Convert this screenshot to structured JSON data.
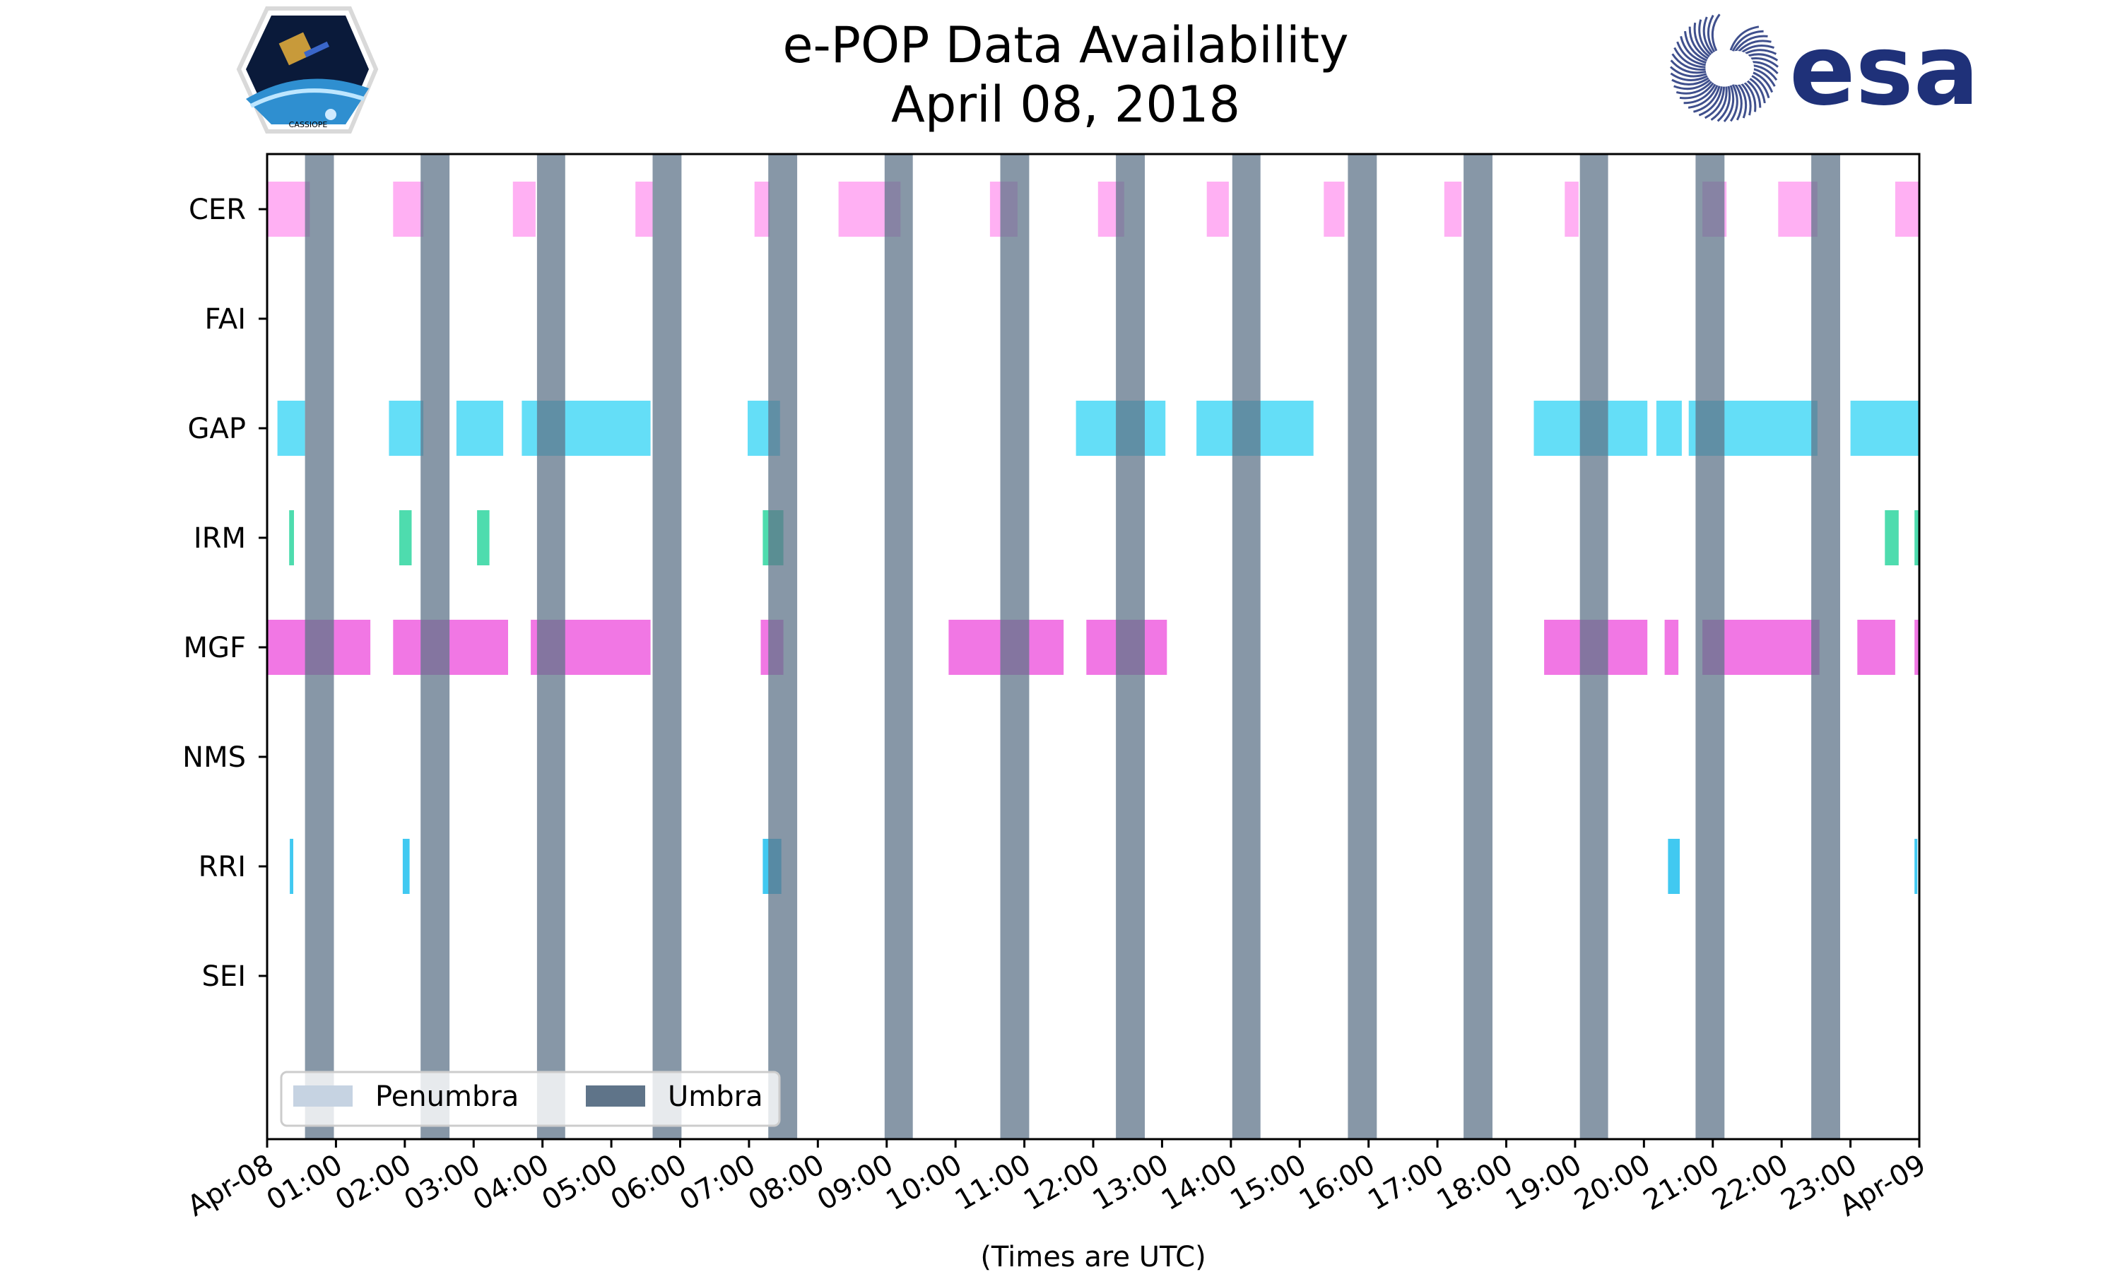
{
  "chart_data": {
    "type": "timeline",
    "title": "e-POP Data Availability",
    "subtitle": "April 08, 2018",
    "xlabel": "(Times are UTC)",
    "x_range_hours": [
      0,
      24
    ],
    "x_tick_labels": [
      "Apr-08",
      "01:00",
      "02:00",
      "03:00",
      "04:00",
      "05:00",
      "06:00",
      "07:00",
      "08:00",
      "09:00",
      "10:00",
      "11:00",
      "12:00",
      "13:00",
      "14:00",
      "15:00",
      "16:00",
      "17:00",
      "18:00",
      "19:00",
      "20:00",
      "21:00",
      "22:00",
      "23:00",
      "Apr-09"
    ],
    "instruments": [
      "CER",
      "FAI",
      "GAP",
      "IRM",
      "MGF",
      "NMS",
      "RRI",
      "SEI"
    ],
    "series": [
      {
        "name": "CER",
        "color": "#ff9cf0",
        "intervals": [
          [
            0.0,
            0.62
          ],
          [
            1.83,
            2.27
          ],
          [
            3.57,
            3.9
          ],
          [
            5.35,
            5.6
          ],
          [
            7.08,
            7.3
          ],
          [
            8.3,
            9.2
          ],
          [
            10.5,
            10.9
          ],
          [
            12.07,
            12.45
          ],
          [
            13.65,
            13.97
          ],
          [
            15.35,
            15.65
          ],
          [
            17.1,
            17.35
          ],
          [
            18.85,
            19.05
          ],
          [
            20.85,
            21.2
          ],
          [
            21.95,
            22.52
          ],
          [
            23.65,
            24.0
          ]
        ]
      },
      {
        "name": "FAI",
        "color": "#00bfff",
        "intervals": []
      },
      {
        "name": "GAP",
        "color": "#3dd6f5",
        "intervals": [
          [
            0.15,
            0.55
          ],
          [
            1.77,
            2.27
          ],
          [
            2.75,
            3.43
          ],
          [
            3.7,
            5.57
          ],
          [
            6.98,
            7.45
          ],
          [
            11.75,
            13.05
          ],
          [
            13.5,
            15.2
          ],
          [
            18.4,
            20.05
          ],
          [
            20.18,
            20.55
          ],
          [
            20.65,
            22.52
          ],
          [
            23.0,
            24.0
          ]
        ]
      },
      {
        "name": "IRM",
        "color": "#22d39a",
        "intervals": [
          [
            0.32,
            0.39
          ],
          [
            1.92,
            2.1
          ],
          [
            3.05,
            3.23
          ],
          [
            7.2,
            7.5
          ],
          [
            23.5,
            23.7
          ],
          [
            23.93,
            24.0
          ]
        ]
      },
      {
        "name": "MGF",
        "color": "#ee55dd",
        "intervals": [
          [
            0.0,
            1.5
          ],
          [
            1.83,
            3.5
          ],
          [
            3.83,
            5.57
          ],
          [
            7.17,
            7.5
          ],
          [
            9.9,
            11.57
          ],
          [
            11.9,
            13.07
          ],
          [
            18.55,
            20.05
          ],
          [
            20.3,
            20.5
          ],
          [
            20.85,
            22.55
          ],
          [
            23.1,
            23.65
          ],
          [
            23.93,
            24.0
          ]
        ]
      },
      {
        "name": "NMS",
        "color": "#ffaa00",
        "intervals": []
      },
      {
        "name": "RRI",
        "color": "#11bbee",
        "intervals": [
          [
            0.33,
            0.38
          ],
          [
            1.97,
            2.07
          ],
          [
            7.2,
            7.47
          ],
          [
            20.35,
            20.52
          ],
          [
            23.93,
            23.97
          ]
        ]
      },
      {
        "name": "SEI",
        "color": "#8888ff",
        "intervals": []
      }
    ],
    "umbra_color": "#5f7489",
    "penumbra_color": "#c6d3e2",
    "umbra_intervals": [
      [
        0.55,
        0.97
      ],
      [
        2.23,
        2.65
      ],
      [
        3.92,
        4.33
      ],
      [
        5.6,
        6.02
      ],
      [
        7.28,
        7.7
      ],
      [
        8.97,
        9.38
      ],
      [
        10.65,
        11.07
      ],
      [
        12.33,
        12.75
      ],
      [
        14.02,
        14.43
      ],
      [
        15.7,
        16.12
      ],
      [
        17.38,
        17.8
      ],
      [
        19.07,
        19.48
      ],
      [
        20.75,
        21.17
      ],
      [
        22.43,
        22.85
      ]
    ],
    "legend": {
      "position": "lower-left",
      "entries": [
        "Penumbra",
        "Umbra"
      ]
    }
  },
  "logos": {
    "left": {
      "name": "cassiope-logo",
      "text": "CASSIOPE"
    },
    "right": {
      "name": "esa-logo",
      "text": "esa"
    }
  }
}
